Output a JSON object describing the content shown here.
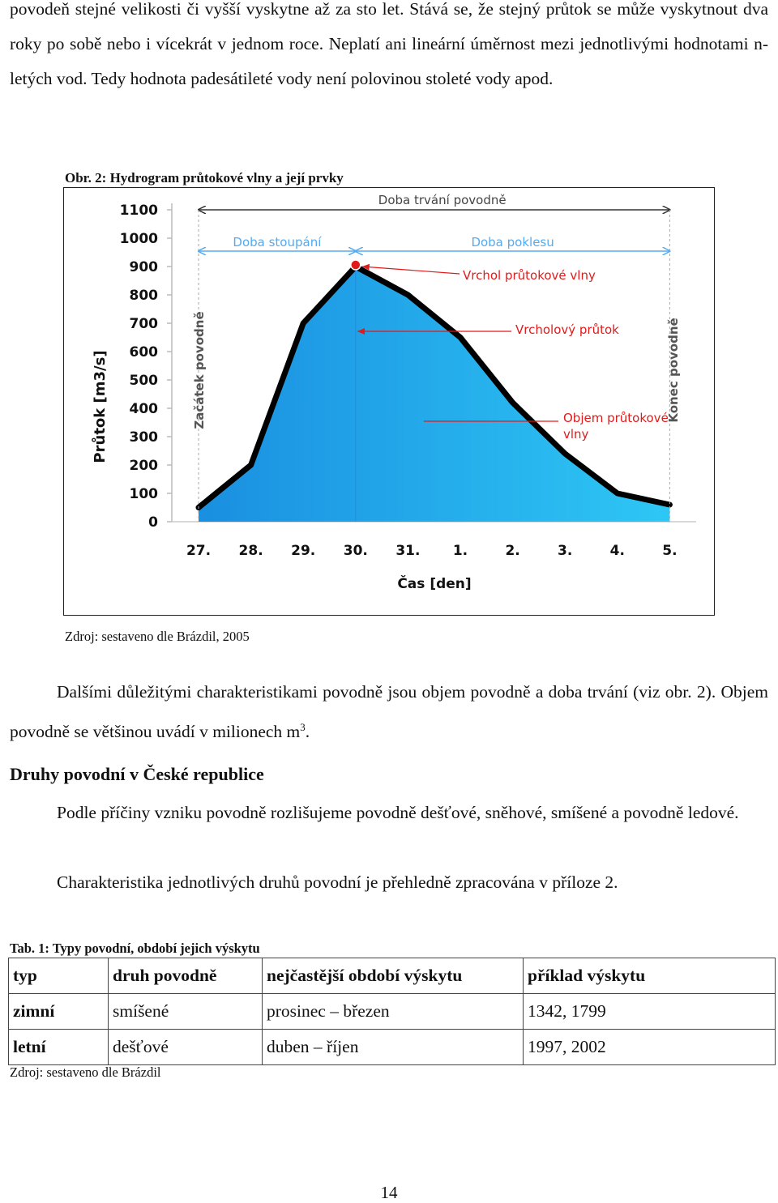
{
  "intro_text": "povodeň stejné velikosti či vyšší vyskytne až za sto let. Stává se, že stejný průtok se může vyskytnout dva roky po sobě nebo i vícekrát v jednom roce. Neplatí ani lineární úměrnost mezi jednotlivými hodnotami n-letých vod. Tedy hodnota padesátileté vody není polovinou stoleté vody apod.",
  "figure": {
    "caption": "Obr. 2: Hydrogram průtokové vlny a její prvky",
    "source": "Zdroj: sestaveno dle Brázdil, 2005"
  },
  "chart_data": {
    "type": "area",
    "title": "",
    "xlabel": "Čas [den]",
    "ylabel": "Průtok [m3/s]",
    "categories": [
      "27.",
      "28.",
      "29.",
      "30.",
      "31.",
      "1.",
      "2.",
      "3.",
      "4.",
      "5."
    ],
    "values": [
      50,
      200,
      700,
      900,
      800,
      650,
      420,
      240,
      100,
      60
    ],
    "ylim": [
      0,
      1100
    ],
    "yticks": [
      "0",
      "100",
      "200",
      "300",
      "400",
      "500",
      "600",
      "700",
      "800",
      "900",
      "1000",
      "1100"
    ],
    "grid": false,
    "colors": {
      "fill_top": "#1a8fe0",
      "fill_bottom": "#2ec7f5",
      "line": "#000000",
      "annotation": "#e01b1b",
      "duration_arrow": "#333333",
      "phase_arrow": "#55aaf0"
    },
    "annotations": {
      "duration": "Doba trvání povodně",
      "rise": "Doba stoupání",
      "fall": "Doba poklesu",
      "peak": "Vrchol průtokové vlny",
      "peak_flow": "Vrcholový průtok",
      "volume_line1": "Objem průtokové",
      "volume_line2": "vlny",
      "start": "Začátek povodně",
      "end": "Konec povodně"
    }
  },
  "para2_text": "Dalšími důležitými charakteristikami povodně jsou objem povodně a doba trvání (viz obr. 2). Objem povodně se většinou uvádí v milionech m",
  "para2_sup": "3",
  "para2_end": ".",
  "heading": "Druhy povodní v České republice",
  "para3_text": "Podle příčiny vzniku povodně rozlišujeme povodně dešťové, sněhové, smíšené a povodně ledové.",
  "para4_text": "Charakteristika jednotlivých druhů povodní je přehledně zpracována v příloze 2.",
  "table": {
    "caption": "Tab. 1: Typy povodní, období jejich výskytu",
    "headers": [
      "typ",
      "druh povodně",
      "nejčastější období výskytu",
      "příklad výskytu"
    ],
    "rows": [
      [
        "zimní",
        "smíšené",
        "prosinec – březen",
        "1342, 1799"
      ],
      [
        "letní",
        "dešťové",
        "duben – říjen",
        "1997, 2002"
      ]
    ],
    "source": "Zdroj: sestaveno dle Brázdil"
  },
  "page_number": "14"
}
